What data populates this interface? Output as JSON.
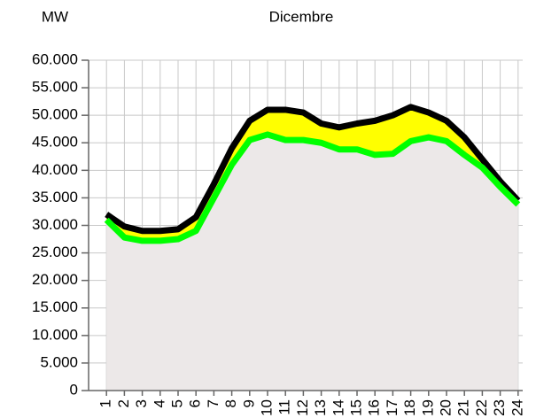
{
  "chart_data": {
    "type": "area-band",
    "title": "Dicembre",
    "y_label": "MW",
    "categories": [
      "1",
      "2",
      "3",
      "4",
      "5",
      "6",
      "7",
      "8",
      "9",
      "10",
      "11",
      "12",
      "13",
      "14",
      "15",
      "16",
      "17",
      "18",
      "19",
      "20",
      "21",
      "22",
      "23",
      "24"
    ],
    "series": [
      {
        "color": "#000000",
        "values": [
          32000,
          29800,
          29000,
          29000,
          29300,
          31500,
          37500,
          44000,
          49000,
          51000,
          51000,
          50500,
          48500,
          47800,
          48500,
          49000,
          50000,
          51500,
          50500,
          49000,
          46000,
          42000,
          38000,
          34500
        ]
      },
      {
        "color": "#00ff00",
        "values": [
          31000,
          27800,
          27200,
          27200,
          27500,
          29000,
          35000,
          41000,
          45500,
          46500,
          45500,
          45500,
          45000,
          43800,
          43800,
          42800,
          43000,
          45300,
          46000,
          45300,
          42800,
          40500,
          37000,
          33800
        ]
      }
    ],
    "band_color": "#ffff00",
    "area_color": "#ece8e8",
    "ylim": [
      0,
      60000
    ],
    "yticks": [
      0,
      {
        "value": 5000,
        "label": "5.000"
      },
      {
        "value": 10000,
        "label": "10.000"
      },
      {
        "value": 15000,
        "label": "15.000"
      },
      {
        "value": 20000,
        "label": "20.000"
      },
      {
        "value": 25000,
        "label": "25.000"
      },
      {
        "value": 30000,
        "label": "30.000"
      },
      {
        "value": 35000,
        "label": "35.000"
      },
      {
        "value": 40000,
        "label": "40.000"
      },
      {
        "value": 45000,
        "label": "45.000"
      },
      {
        "value": 50000,
        "label": "50.000"
      },
      {
        "value": 55000,
        "label": "55.000"
      },
      {
        "value": 60000,
        "label": "60.000"
      }
    ],
    "grid": true
  }
}
